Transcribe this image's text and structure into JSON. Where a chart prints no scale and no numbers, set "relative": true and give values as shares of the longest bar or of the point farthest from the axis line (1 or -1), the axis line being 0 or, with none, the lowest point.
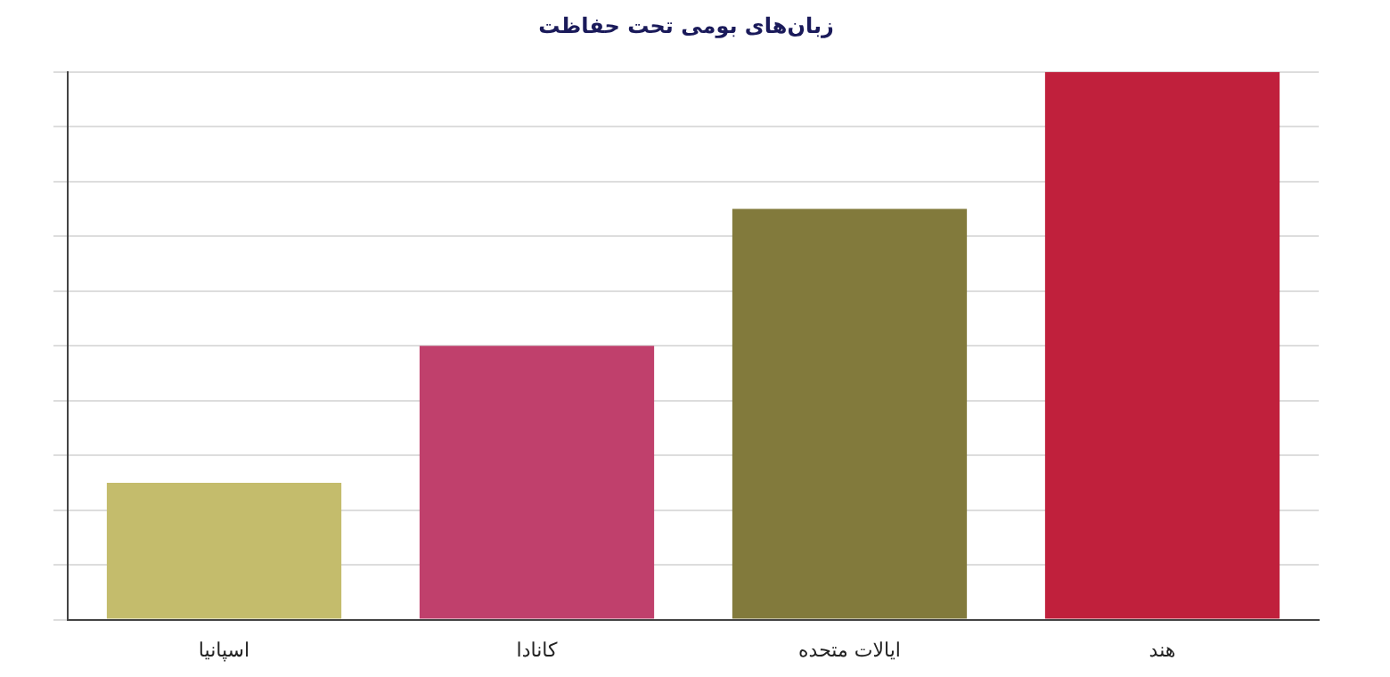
{
  "chart_data": {
    "type": "bar",
    "title": "زبان‌های بومی تحت حفاظت",
    "categories": [
      "اسپانیا",
      "کانادا",
      "ایالات متحده",
      "هند"
    ],
    "values": [
      0.25,
      0.5,
      0.75,
      1
    ],
    "colors": [
      "#c4bc6c",
      "#c0406c",
      "#827a3c",
      "#c0203c"
    ],
    "relative": true,
    "grid": "y",
    "legend": false
  }
}
